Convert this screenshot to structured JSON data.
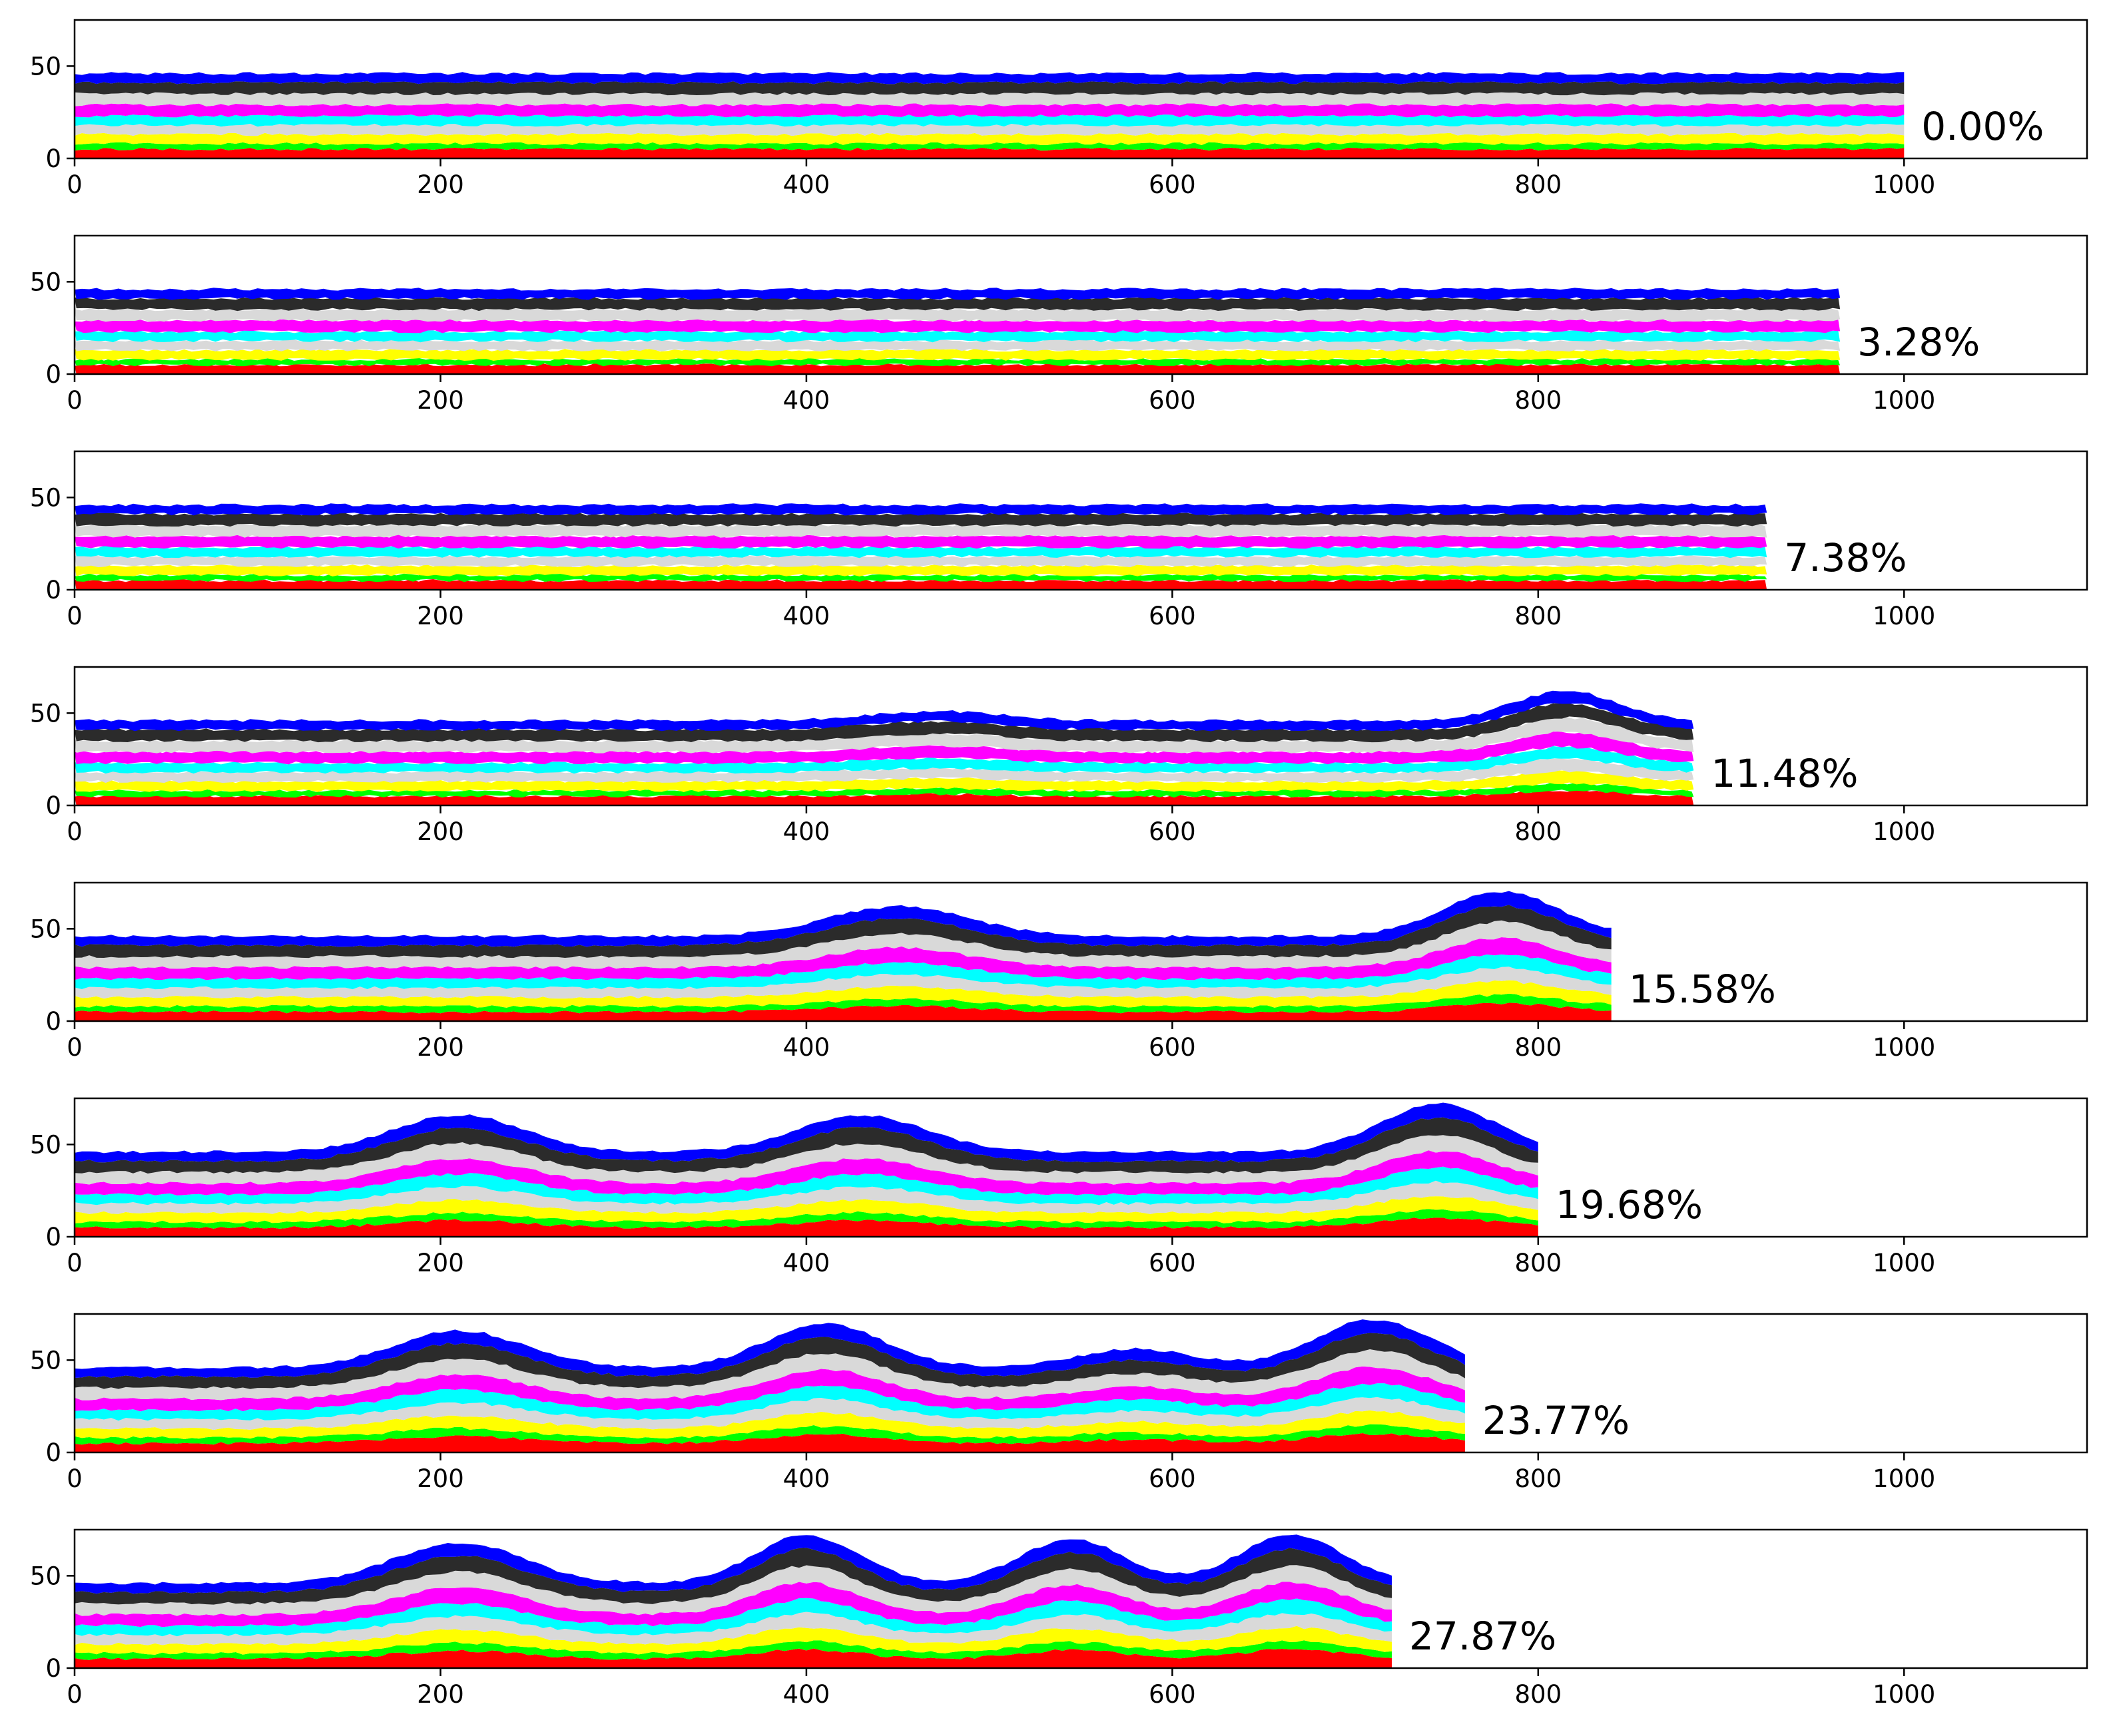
{
  "chart_data": {
    "type": "area",
    "description_note": "",
    "xlim": [
      0,
      1100
    ],
    "ylim": [
      0,
      75
    ],
    "x_ticks": [
      "0",
      "200",
      "400",
      "600",
      "800",
      "1000"
    ],
    "y_ticks": [
      "0",
      "50"
    ],
    "layer_colors": [
      "#ff0000",
      "#00ff00",
      "#ffff00",
      "#d9d9d9",
      "#00ffff",
      "#ff00ff",
      "#d9d9d9",
      "#2b2b2b",
      "#0000ff"
    ],
    "panels": [
      {
        "label": "0.00%",
        "x_max": 1000,
        "layers": [
          [
            0,
            5
          ],
          [
            5,
            8
          ],
          [
            8,
            13
          ],
          [
            13,
            18
          ],
          [
            18,
            23
          ],
          [
            23,
            29
          ],
          [
            29,
            35
          ],
          [
            35,
            41
          ],
          [
            41,
            46
          ]
        ],
        "folds": []
      },
      {
        "label": "3.28%",
        "x_max": 965,
        "layers": [
          [
            0,
            5
          ],
          [
            5,
            8
          ],
          [
            8,
            13
          ],
          [
            13,
            18
          ],
          [
            18,
            23
          ],
          [
            23,
            29
          ],
          [
            29,
            35
          ],
          [
            35,
            41
          ],
          [
            41,
            46
          ]
        ],
        "folds": []
      },
      {
        "label": "7.38%",
        "x_max": 925,
        "layers": [
          [
            0,
            5
          ],
          [
            5,
            8
          ],
          [
            8,
            13
          ],
          [
            13,
            18
          ],
          [
            18,
            23
          ],
          [
            23,
            29
          ],
          [
            29,
            35
          ],
          [
            35,
            41
          ],
          [
            41,
            46
          ]
        ],
        "folds": []
      },
      {
        "label": "11.48%",
        "x_max": 885,
        "layers": [
          [
            0,
            5
          ],
          [
            5,
            8
          ],
          [
            8,
            13
          ],
          [
            13,
            18
          ],
          [
            18,
            23
          ],
          [
            23,
            29
          ],
          [
            29,
            35
          ],
          [
            35,
            41
          ],
          [
            41,
            46
          ]
        ],
        "folds": [
          {
            "center": 470,
            "width": 50,
            "amp": 5
          },
          {
            "center": 815,
            "width": 40,
            "amp": 16
          }
        ]
      },
      {
        "label": "15.58%",
        "x_max": 840,
        "layers": [
          [
            0,
            5
          ],
          [
            5,
            8
          ],
          [
            8,
            13
          ],
          [
            13,
            18
          ],
          [
            18,
            23
          ],
          [
            23,
            29
          ],
          [
            29,
            35
          ],
          [
            35,
            41
          ],
          [
            41,
            46
          ]
        ],
        "folds": [
          {
            "center": 450,
            "width": 55,
            "amp": 16
          },
          {
            "center": 780,
            "width": 45,
            "amp": 24
          }
        ]
      },
      {
        "label": "19.68%",
        "x_max": 800,
        "layers": [
          [
            0,
            5
          ],
          [
            5,
            8
          ],
          [
            8,
            13
          ],
          [
            13,
            18
          ],
          [
            18,
            23
          ],
          [
            23,
            29
          ],
          [
            29,
            35
          ],
          [
            35,
            41
          ],
          [
            41,
            46
          ]
        ],
        "folds": [
          {
            "center": 210,
            "width": 50,
            "amp": 20
          },
          {
            "center": 430,
            "width": 50,
            "amp": 20
          },
          {
            "center": 745,
            "width": 45,
            "amp": 26
          }
        ]
      },
      {
        "label": "23.77%",
        "x_max": 760,
        "layers": [
          [
            0,
            5
          ],
          [
            5,
            8
          ],
          [
            8,
            13
          ],
          [
            13,
            18
          ],
          [
            18,
            23
          ],
          [
            23,
            29
          ],
          [
            29,
            35
          ],
          [
            35,
            41
          ],
          [
            41,
            46
          ]
        ],
        "folds": [
          {
            "center": 210,
            "width": 50,
            "amp": 20
          },
          {
            "center": 410,
            "width": 45,
            "amp": 24
          },
          {
            "center": 580,
            "width": 45,
            "amp": 10
          },
          {
            "center": 710,
            "width": 45,
            "amp": 26
          }
        ]
      },
      {
        "label": "27.87%",
        "x_max": 720,
        "layers": [
          [
            0,
            5
          ],
          [
            5,
            8
          ],
          [
            8,
            13
          ],
          [
            13,
            18
          ],
          [
            18,
            23
          ],
          [
            23,
            29
          ],
          [
            29,
            35
          ],
          [
            35,
            41
          ],
          [
            41,
            46
          ]
        ],
        "folds": [
          {
            "center": 210,
            "width": 50,
            "amp": 22
          },
          {
            "center": 400,
            "width": 40,
            "amp": 26
          },
          {
            "center": 545,
            "width": 40,
            "amp": 24
          },
          {
            "center": 665,
            "width": 40,
            "amp": 26
          }
        ]
      }
    ]
  }
}
